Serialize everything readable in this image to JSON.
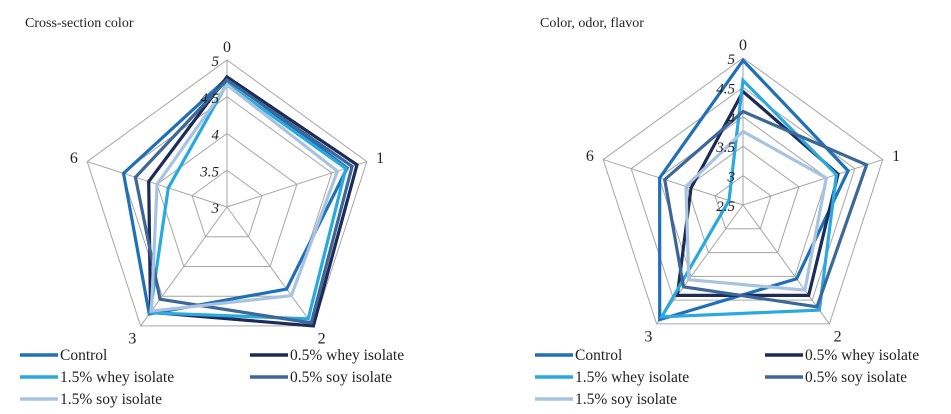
{
  "chart_data": [
    {
      "type": "radar",
      "title": "Cross-section color",
      "axes": [
        "0",
        "1",
        "2",
        "3",
        "6"
      ],
      "rlim": [
        3,
        5
      ],
      "rticks": [
        "3",
        "3.5",
        "4",
        "4.5",
        "5"
      ],
      "grid": true,
      "legend_position": "bottom",
      "series": [
        {
          "name": "Control",
          "color": "#1f70b6",
          "values": [
            4.75,
            4.72,
            4.38,
            4.8,
            4.48
          ]
        },
        {
          "name": "0.5% whey isolate",
          "color": "#1c2b58",
          "values": [
            4.77,
            4.86,
            5.0,
            4.77,
            4.12
          ]
        },
        {
          "name": "1.5% whey isolate",
          "color": "#2aa9e0",
          "values": [
            4.68,
            4.7,
            4.88,
            4.78,
            3.84
          ]
        },
        {
          "name": "0.5% soy isolate",
          "color": "#3c6797",
          "values": [
            4.73,
            4.79,
            4.95,
            4.55,
            4.31
          ]
        },
        {
          "name": "1.5% soy isolate",
          "color": "#a8c3e0",
          "values": [
            4.66,
            4.58,
            4.49,
            4.75,
            4.0
          ]
        }
      ]
    },
    {
      "type": "radar",
      "title": "Color, odor, flavor",
      "axes": [
        "0",
        "1",
        "2",
        "3",
        "6"
      ],
      "rlim": [
        2.5,
        5
      ],
      "rticks": [
        "2.5",
        "3",
        "3.5",
        "4",
        "4.5",
        "5"
      ],
      "grid": true,
      "legend_position": "bottom",
      "series": [
        {
          "name": "Control",
          "color": "#1f70b6",
          "values": [
            4.96,
            4.38,
            4.05,
            4.91,
            3.99
          ]
        },
        {
          "name": "0.5% whey isolate",
          "color": "#1c2b58",
          "values": [
            4.43,
            4.2,
            4.4,
            4.4,
            3.43
          ]
        },
        {
          "name": "1.5% whey isolate",
          "color": "#2aa9e0",
          "values": [
            4.62,
            4.17,
            4.71,
            4.85,
            2.75
          ]
        },
        {
          "name": "0.5% soy isolate",
          "color": "#3c6797",
          "values": [
            4.09,
            4.71,
            4.64,
            4.22,
            3.9
          ]
        },
        {
          "name": "1.5% soy isolate",
          "color": "#a8c3e0",
          "values": [
            3.75,
            3.99,
            4.29,
            4.07,
            3.52
          ]
        }
      ]
    }
  ]
}
